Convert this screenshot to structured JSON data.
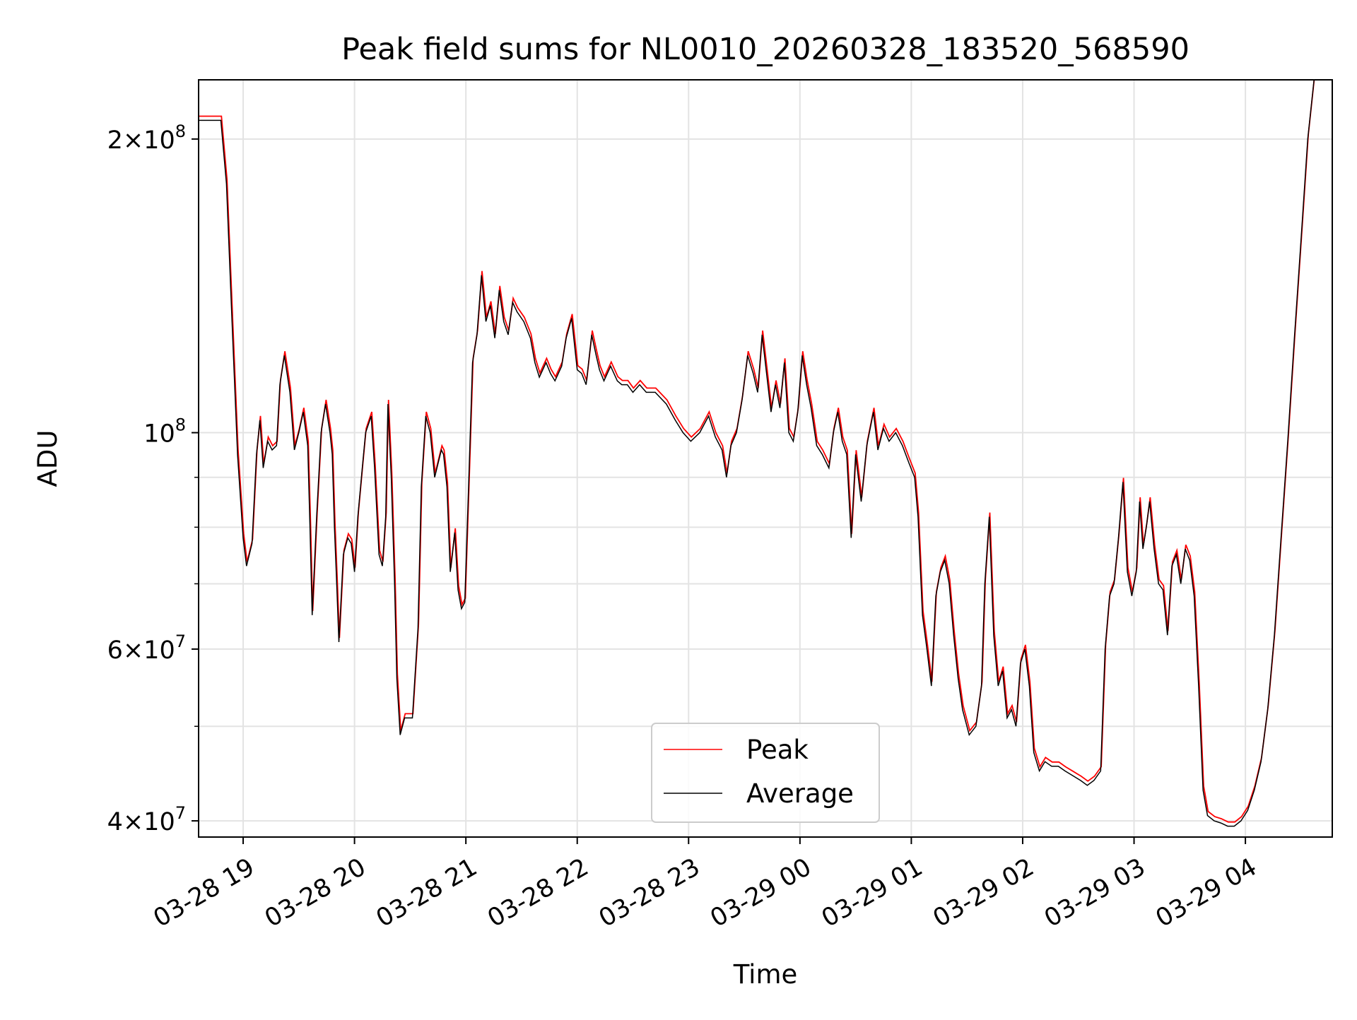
{
  "chart_data": {
    "type": "line",
    "title": "Peak field sums for NL0010_20260328_183520_568590",
    "xlabel": "Time",
    "ylabel": "ADU",
    "yscale": "log",
    "ylim": [
      38500000,
      230000000
    ],
    "xlim": [
      18.6,
      28.78
    ],
    "grid": true,
    "legend_position": "lower-center",
    "x_ticks": [
      {
        "value": 19,
        "label": "03-28 19"
      },
      {
        "value": 20,
        "label": "03-28 20"
      },
      {
        "value": 21,
        "label": "03-28 21"
      },
      {
        "value": 22,
        "label": "03-28 22"
      },
      {
        "value": 23,
        "label": "03-28 23"
      },
      {
        "value": 24,
        "label": "03-29 00"
      },
      {
        "value": 25,
        "label": "03-29 01"
      },
      {
        "value": 26,
        "label": "03-29 02"
      },
      {
        "value": 27,
        "label": "03-29 03"
      },
      {
        "value": 28,
        "label": "03-29 04"
      }
    ],
    "y_major_ticks": [
      {
        "value": 40000000,
        "mantissa": "4",
        "exponent": "7"
      },
      {
        "value": 60000000,
        "mantissa": "6",
        "exponent": "7"
      },
      {
        "value": 100000000,
        "mantissa": "",
        "exponent": "8"
      },
      {
        "value": 200000000,
        "mantissa": "2",
        "exponent": "8"
      }
    ],
    "y_minor_ticks": [
      50000000,
      70000000,
      80000000,
      90000000
    ],
    "legend": [
      {
        "name": "Peak",
        "color": "#ff0000"
      },
      {
        "name": "Average",
        "color": "#000000"
      }
    ],
    "series": [
      {
        "name": "Average",
        "color": "#000000",
        "unit_note": "time in hours since 2026-03-28 00:00; values in units of 1e6 ADU",
        "points": [
          [
            18.6,
            209
          ],
          [
            18.8,
            209
          ],
          [
            18.85,
            180
          ],
          [
            18.9,
            130
          ],
          [
            18.95,
            95
          ],
          [
            19.0,
            78
          ],
          [
            19.03,
            73
          ],
          [
            19.08,
            77
          ],
          [
            19.12,
            95
          ],
          [
            19.15,
            103
          ],
          [
            19.18,
            92
          ],
          [
            19.22,
            98
          ],
          [
            19.26,
            96
          ],
          [
            19.3,
            97
          ],
          [
            19.33,
            112
          ],
          [
            19.37,
            120
          ],
          [
            19.42,
            110
          ],
          [
            19.46,
            96
          ],
          [
            19.5,
            100
          ],
          [
            19.54,
            105
          ],
          [
            19.58,
            97
          ],
          [
            19.6,
            80
          ],
          [
            19.62,
            65
          ],
          [
            19.66,
            82
          ],
          [
            19.7,
            100
          ],
          [
            19.74,
            107
          ],
          [
            19.78,
            100
          ],
          [
            19.8,
            95
          ],
          [
            19.82,
            80
          ],
          [
            19.84,
            70
          ],
          [
            19.86,
            61
          ],
          [
            19.9,
            75
          ],
          [
            19.94,
            78
          ],
          [
            19.97,
            77
          ],
          [
            20.0,
            72
          ],
          [
            20.03,
            82
          ],
          [
            20.07,
            92
          ],
          [
            20.1,
            100
          ],
          [
            20.15,
            104
          ],
          [
            20.18,
            92
          ],
          [
            20.22,
            75
          ],
          [
            20.25,
            73
          ],
          [
            20.28,
            82
          ],
          [
            20.3,
            107
          ],
          [
            20.33,
            90
          ],
          [
            20.36,
            70
          ],
          [
            20.38,
            56
          ],
          [
            20.41,
            49
          ],
          [
            20.45,
            51
          ],
          [
            20.52,
            51
          ],
          [
            20.57,
            63
          ],
          [
            20.6,
            88
          ],
          [
            20.64,
            104
          ],
          [
            20.68,
            100
          ],
          [
            20.72,
            90
          ],
          [
            20.75,
            93
          ],
          [
            20.78,
            96
          ],
          [
            20.8,
            95
          ],
          [
            20.83,
            88
          ],
          [
            20.86,
            72
          ],
          [
            20.9,
            79
          ],
          [
            20.93,
            69
          ],
          [
            20.96,
            66
          ],
          [
            20.99,
            67
          ],
          [
            21.02,
            85
          ],
          [
            21.06,
            118
          ],
          [
            21.1,
            126
          ],
          [
            21.14,
            145
          ],
          [
            21.18,
            130
          ],
          [
            21.22,
            135
          ],
          [
            21.26,
            125
          ],
          [
            21.3,
            140
          ],
          [
            21.34,
            130
          ],
          [
            21.38,
            126
          ],
          [
            21.42,
            136
          ],
          [
            21.46,
            133
          ],
          [
            21.52,
            130
          ],
          [
            21.58,
            125
          ],
          [
            21.62,
            118
          ],
          [
            21.66,
            114
          ],
          [
            21.72,
            118
          ],
          [
            21.76,
            115
          ],
          [
            21.8,
            113
          ],
          [
            21.86,
            117
          ],
          [
            21.9,
            125
          ],
          [
            21.95,
            131
          ],
          [
            22.0,
            116
          ],
          [
            22.04,
            115
          ],
          [
            22.08,
            112
          ],
          [
            22.13,
            126
          ],
          [
            22.17,
            120
          ],
          [
            22.2,
            116
          ],
          [
            22.24,
            113
          ],
          [
            22.3,
            117
          ],
          [
            22.36,
            113
          ],
          [
            22.4,
            112
          ],
          [
            22.45,
            112
          ],
          [
            22.5,
            110
          ],
          [
            22.56,
            112
          ],
          [
            22.62,
            110
          ],
          [
            22.7,
            110
          ],
          [
            22.8,
            107
          ],
          [
            22.88,
            103
          ],
          [
            22.95,
            100
          ],
          [
            23.02,
            98
          ],
          [
            23.1,
            100
          ],
          [
            23.18,
            104
          ],
          [
            23.24,
            99
          ],
          [
            23.3,
            96
          ],
          [
            23.34,
            90
          ],
          [
            23.38,
            97
          ],
          [
            23.43,
            100
          ],
          [
            23.48,
            108
          ],
          [
            23.53,
            120
          ],
          [
            23.58,
            115
          ],
          [
            23.62,
            110
          ],
          [
            23.66,
            126
          ],
          [
            23.7,
            115
          ],
          [
            23.74,
            105
          ],
          [
            23.78,
            112
          ],
          [
            23.82,
            106
          ],
          [
            23.86,
            118
          ],
          [
            23.9,
            100
          ],
          [
            23.94,
            98
          ],
          [
            23.98,
            105
          ],
          [
            24.02,
            120
          ],
          [
            24.06,
            112
          ],
          [
            24.1,
            106
          ],
          [
            24.15,
            97
          ],
          [
            24.2,
            95
          ],
          [
            24.26,
            92
          ],
          [
            24.3,
            100
          ],
          [
            24.34,
            105
          ],
          [
            24.38,
            98
          ],
          [
            24.42,
            95
          ],
          [
            24.46,
            78
          ],
          [
            24.5,
            95
          ],
          [
            24.55,
            85
          ],
          [
            24.6,
            97
          ],
          [
            24.66,
            105
          ],
          [
            24.7,
            96
          ],
          [
            24.75,
            101
          ],
          [
            24.8,
            98
          ],
          [
            24.86,
            100
          ],
          [
            24.92,
            97
          ],
          [
            24.98,
            93
          ],
          [
            25.03,
            90
          ],
          [
            25.06,
            82
          ],
          [
            25.1,
            65
          ],
          [
            25.14,
            60
          ],
          [
            25.18,
            55
          ],
          [
            25.22,
            68
          ],
          [
            25.26,
            72
          ],
          [
            25.3,
            74
          ],
          [
            25.34,
            70
          ],
          [
            25.38,
            62
          ],
          [
            25.42,
            56
          ],
          [
            25.46,
            52
          ],
          [
            25.52,
            49
          ],
          [
            25.58,
            50
          ],
          [
            25.63,
            55
          ],
          [
            25.66,
            70
          ],
          [
            25.7,
            82
          ],
          [
            25.74,
            62
          ],
          [
            25.78,
            55
          ],
          [
            25.82,
            57
          ],
          [
            25.86,
            51
          ],
          [
            25.9,
            52
          ],
          [
            25.94,
            50
          ],
          [
            25.98,
            58
          ],
          [
            26.02,
            60
          ],
          [
            26.06,
            55
          ],
          [
            26.1,
            47
          ],
          [
            26.15,
            45
          ],
          [
            26.2,
            46
          ],
          [
            26.26,
            45.5
          ],
          [
            26.32,
            45.5
          ],
          [
            26.38,
            45
          ],
          [
            26.45,
            44.5
          ],
          [
            26.52,
            44
          ],
          [
            26.58,
            43.5
          ],
          [
            26.64,
            44
          ],
          [
            26.7,
            45
          ],
          [
            26.74,
            60
          ],
          [
            26.78,
            68
          ],
          [
            26.82,
            70
          ],
          [
            26.86,
            78
          ],
          [
            26.9,
            89
          ],
          [
            26.94,
            72
          ],
          [
            26.98,
            68
          ],
          [
            27.02,
            72
          ],
          [
            27.05,
            85
          ],
          [
            27.08,
            76
          ],
          [
            27.11,
            80
          ],
          [
            27.14,
            85
          ],
          [
            27.18,
            76
          ],
          [
            27.22,
            70
          ],
          [
            27.26,
            69
          ],
          [
            27.3,
            62
          ],
          [
            27.34,
            73
          ],
          [
            27.38,
            75
          ],
          [
            27.42,
            70
          ],
          [
            27.46,
            76
          ],
          [
            27.5,
            74
          ],
          [
            27.54,
            68
          ],
          [
            27.58,
            55
          ],
          [
            27.62,
            43
          ],
          [
            27.66,
            40.5
          ],
          [
            27.72,
            40
          ],
          [
            27.78,
            39.8
          ],
          [
            27.84,
            39.5
          ],
          [
            27.9,
            39.5
          ],
          [
            27.96,
            40
          ],
          [
            28.02,
            41
          ],
          [
            28.08,
            43
          ],
          [
            28.14,
            46
          ],
          [
            28.2,
            52
          ],
          [
            28.26,
            62
          ],
          [
            28.32,
            78
          ],
          [
            28.38,
            98
          ],
          [
            28.44,
            125
          ],
          [
            28.5,
            158
          ],
          [
            28.56,
            200
          ],
          [
            28.62,
            232
          ]
        ]
      }
    ]
  }
}
